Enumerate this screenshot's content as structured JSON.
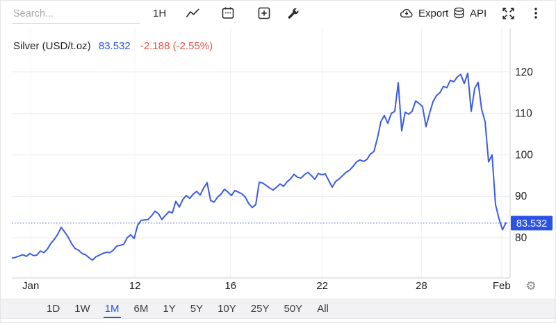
{
  "toolbar": {
    "search_placeholder": "Search...",
    "interval_label": "1H",
    "export_label": "Export",
    "api_label": "API"
  },
  "header": {
    "title": "Silver (USD/t.oz)",
    "price": "83.532",
    "change": "-2.188 (-2.55%)"
  },
  "colors": {
    "accent": "#2b52e2",
    "line": "#3a5be3",
    "negative": "#e4554b",
    "grid_h": "#e8eaed",
    "grid_v": "#eef1f5",
    "axis_line": "#c9ccd1",
    "tick_text": "#1d1d1f",
    "badge_text": "#ffffff"
  },
  "chart_data": {
    "type": "line",
    "title": "Silver (USD/t.oz)",
    "unit": "USD/t.oz",
    "current_price": 83.532,
    "change": -2.188,
    "change_pct": "-2.55%",
    "ylim": [
      70.3,
      130.5
    ],
    "y_ticks": [
      80,
      90,
      100,
      110,
      120
    ],
    "x_ticks": [
      {
        "label": "Jan",
        "pos": 0.038
      },
      {
        "label": "12",
        "pos": 0.247
      },
      {
        "label": "16",
        "pos": 0.439
      },
      {
        "label": "22",
        "pos": 0.623
      },
      {
        "label": "28",
        "pos": 0.822
      },
      {
        "label": "Feb",
        "pos": 0.983
      }
    ],
    "x_range": [
      0.0014,
      0.9916
    ],
    "grid": true,
    "legend": false,
    "axis_side": "right",
    "prices": [
      75.1,
      75.3,
      75.6,
      75.9,
      75.5,
      76.2,
      75.7,
      75.8,
      76.8,
      76.4,
      77.2,
      78.6,
      79.6,
      80.8,
      82.5,
      81.4,
      80.2,
      78.6,
      77.4,
      77.0,
      76.2,
      75.9,
      75.2,
      74.6,
      75.4,
      75.8,
      76.2,
      76.5,
      76.4,
      77.0,
      78.0,
      78.2,
      78.4,
      80.0,
      80.7,
      79.8,
      83.0,
      84.2,
      84.3,
      84.4,
      85.3,
      86.4,
      85.8,
      84.4,
      85.4,
      86.3,
      86.0,
      88.8,
      87.4,
      89.2,
      90.2,
      89.5,
      90.5,
      91.2,
      90.3,
      92.0,
      93.3,
      89.0,
      88.6,
      89.8,
      90.5,
      91.7,
      91.0,
      90.2,
      91.4,
      91.0,
      90.6,
      89.8,
      88.2,
      87.3,
      88.0,
      93.4,
      93.2,
      92.6,
      92.0,
      91.5,
      92.2,
      93.0,
      92.4,
      93.5,
      94.2,
      95.3,
      94.6,
      94.4,
      95.2,
      95.8,
      95.0,
      94.1,
      95.5,
      95.2,
      95.4,
      93.8,
      92.2,
      93.6,
      94.2,
      95.0,
      95.8,
      96.3,
      97.2,
      98.3,
      98.8,
      98.4,
      98.9,
      100.2,
      100.8,
      104.0,
      108.0,
      109.5,
      107.6,
      110.0,
      110.5,
      117.4,
      105.8,
      110.3,
      109.8,
      110.5,
      113.0,
      112.4,
      111.6,
      106.8,
      110.0,
      112.8,
      114.3,
      115.0,
      116.5,
      116.2,
      118.0,
      117.6,
      118.8,
      119.4,
      117.2,
      119.7,
      110.5,
      116.0,
      117.5,
      111.0,
      108.0,
      98.3,
      100.0,
      88.0,
      84.6,
      81.9,
      83.6
    ]
  },
  "axis_badge": {
    "value": "83.532"
  },
  "timeframes": {
    "items": [
      "1D",
      "1W",
      "1M",
      "6M",
      "1Y",
      "5Y",
      "10Y",
      "25Y",
      "50Y",
      "All"
    ],
    "active": "1M"
  },
  "icons": {
    "names": [
      "line-chart-icon",
      "calendar-icon",
      "add-panel-icon",
      "tools-icon",
      "cloud-export-icon",
      "database-icon",
      "fullscreen-icon",
      "kebab-menu-icon",
      "gear-icon"
    ]
  }
}
